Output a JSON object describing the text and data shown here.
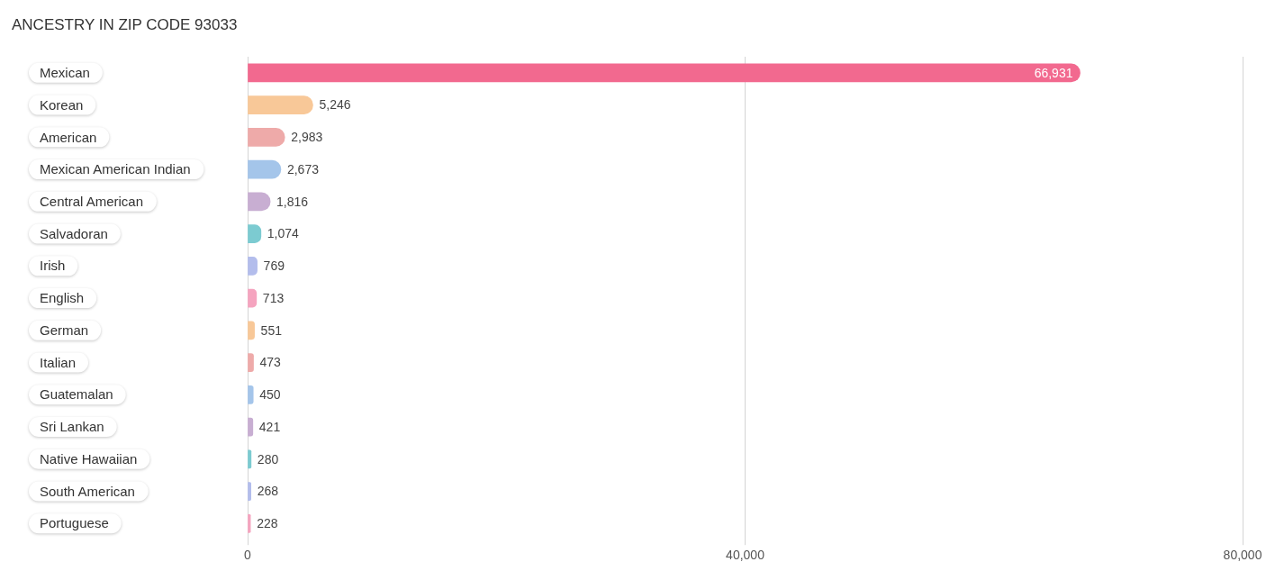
{
  "chart_data": {
    "type": "bar",
    "title": "ANCESTRY IN ZIP CODE 93033",
    "orientation": "horizontal",
    "categories": [
      "Mexican",
      "Korean",
      "American",
      "Mexican American Indian",
      "Central American",
      "Salvadoran",
      "Irish",
      "English",
      "German",
      "Italian",
      "Guatemalan",
      "Sri Lankan",
      "Native Hawaiian",
      "South American",
      "Portuguese"
    ],
    "values": [
      66931,
      5246,
      2983,
      2673,
      1816,
      1074,
      769,
      713,
      551,
      473,
      450,
      421,
      280,
      268,
      228
    ],
    "value_labels": [
      "66,931",
      "5,246",
      "2,983",
      "2,673",
      "1,816",
      "1,074",
      "769",
      "713",
      "551",
      "473",
      "450",
      "421",
      "280",
      "268",
      "228"
    ],
    "colors": [
      "#f2698f",
      "#f8c898",
      "#eeaaa9",
      "#a4c5ea",
      "#c8aed2",
      "#7ccbd1",
      "#b3bdec",
      "#f5a4bf",
      "#f8c898",
      "#eeaaa9",
      "#a4c5ea",
      "#c8aed2",
      "#7ccbd1",
      "#b3bdec",
      "#f5a4bf"
    ],
    "xlim": [
      0,
      80000
    ],
    "xticks": [
      0,
      {
        "value": 40000,
        "label": "40,000"
      },
      {
        "value": 80000,
        "label": "80,000"
      }
    ],
    "grid": "x"
  }
}
